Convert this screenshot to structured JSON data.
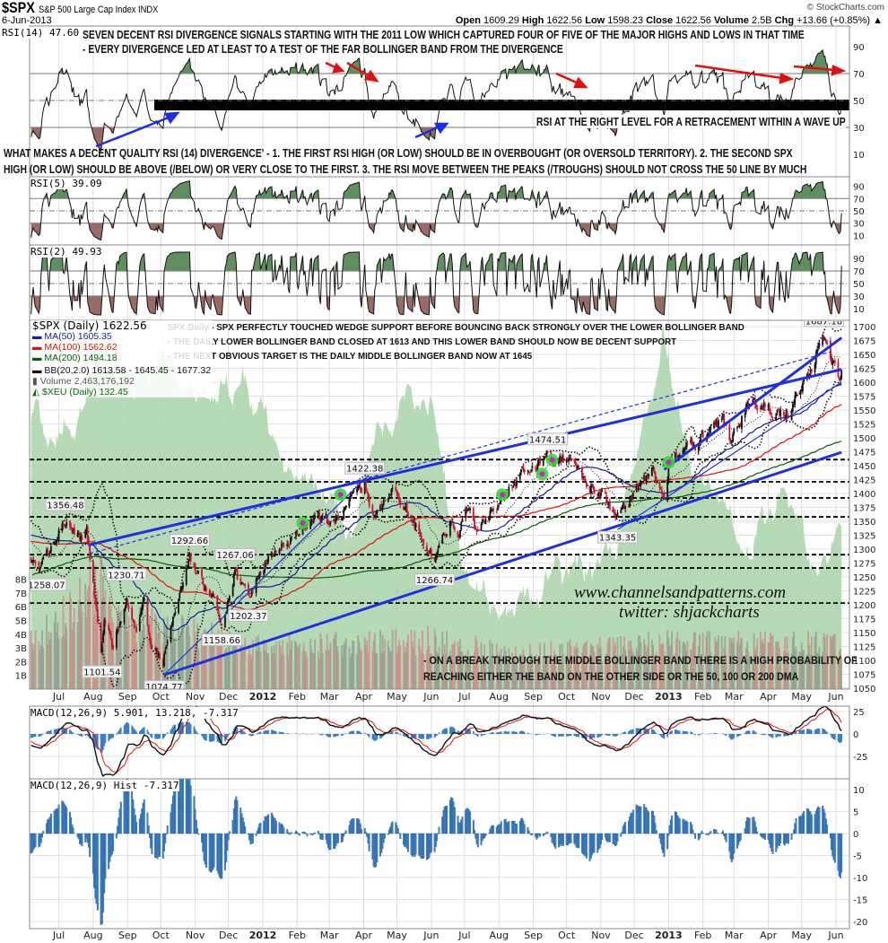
{
  "header": {
    "symbol": "$SPX",
    "name": "S&P 500 Large Cap Index  INDX",
    "date": "6-Jun-2013",
    "copyright": "© StockCharts.com",
    "open_label": "Open",
    "open": "1609.29",
    "high_label": "High",
    "high": "1622.56",
    "low_label": "Low",
    "low": "1598.23",
    "close_label": "Close",
    "close": "1622.56",
    "volume_label": "Volume",
    "volume": "2.5B",
    "chg_label": "Chg",
    "chg": "+13.66 (+0.85%) ▲"
  },
  "panels": {
    "rsi14_label": "RSI(14) 47.60",
    "rsi5_label": "RSI(5) 39.09",
    "rsi2_label": "RSI(2) 49.93",
    "macd_label": "MACD(12,26,9) 5.901, 13.218, -7.317",
    "hist_label": "MACD(12,26,9) Hist -7.317"
  },
  "legend": {
    "spx": "$SPX (Daily) 1622.56",
    "ma50": "MA(50) 1605.35",
    "ma100": "MA(100) 1562.62",
    "ma200": "MA(200) 1494.18",
    "bb": "BB(20,2.0) 1613.58 - 1645.45 - 1677.32",
    "volume": "Volume 2,463,176,192",
    "xeu": "$XEU (Daily) 132.45"
  },
  "annotations": {
    "rsi_line1": "SEVEN DECENT RSI DIVERGENCE SIGNALS STARTING WITH THE 2011 LOW WHICH CAPTURED FOUR OF FIVE OF THE MAJOR HIGHS AND LOWS IN THAT TIME",
    "rsi_line2": "- EVERY DIVERGENCE LED AT LEAST TO A TEST OF THE FAR BOLLINGER BAND FROM THE DIVERGENCE",
    "rsi_level": "RSI AT THE RIGHT LEVEL FOR A RETRACEMENT WITHIN A WAVE UP",
    "quality1": "WHAT MAKES A DECENT QUALITY RSI (14) DIVERGENCE' - 1. THE FIRST RSI HIGH (OR LOW) SHOULD BE IN OVERBOUGHT (OR OVERSOLD TERRITORY). 2. THE SECOND SPX",
    "quality2": "HIGH (OR LOW) SHOULD BE ABOVE (/BELOW) OR VERY CLOSE TO THE FIRST. 3. THE RSI MOVE BETWEEN THE PEAKS (/TROUGHS) SHOULD NOT CROSS THE 50 LINE BY MUCH",
    "spx1": "SPX Daily - SPX PERFECTLY TOUCHED WEDGE SUPPORT BEFORE BOUNCING BACK STRONGLY OVER THE LOWER BOLLINGER BAND",
    "spx2": "- THE DAILY LOWER BOLLINGER BAND CLOSED AT 1613 AND THIS LOWER BAND SHOULD NOW BE DECENT SUPPORT",
    "spx3": "- THE NEXT OBVIOUS TARGET IS THE DAILY MIDDLE BOLLINGER BAND NOW AT 1645",
    "bottom1": "- ON A BREAK THROUGH THE MIDDLE BOLLINGER BAND THERE IS A HIGH PROBABILITY OF",
    "bottom2": "REACHING EITHER THE BAND ON THE OTHER SIDE OR THE 50, 100 OR 200 DMA",
    "watermark1": "www.channelsandpatterns.com",
    "watermark2": "twitter: shjackcharts"
  },
  "chart_data": {
    "type": "candlestick",
    "title": "$SPX S&P 500 Large Cap Index (Daily)",
    "series_start": "2010-09-01",
    "series_end": "2013-06-06",
    "visible_start": "2011-06-06",
    "last_close": 1622.56,
    "price_ylim": [
      1040,
      1715
    ],
    "price_ticks": [
      1050,
      1075,
      1100,
      1125,
      1150,
      1175,
      1200,
      1225,
      1250,
      1275,
      1300,
      1325,
      1350,
      1375,
      1400,
      1425,
      1450,
      1475,
      1500,
      1525,
      1550,
      1575,
      1600,
      1625,
      1650,
      1675,
      1700
    ],
    "volume_ticks": [
      "1B",
      "2B",
      "3B",
      "4B",
      "5B",
      "6B",
      "7B",
      "8B"
    ],
    "rsi_ticks": [
      90,
      70,
      50,
      30,
      10
    ],
    "macd_ticks": [
      25,
      0,
      -25
    ],
    "hist_ticks": [
      10,
      5,
      0,
      -5,
      -10,
      -15,
      -20
    ],
    "months": [
      {
        "date": "2011-07-01",
        "label": "Jul"
      },
      {
        "date": "2011-08-01",
        "label": "Aug"
      },
      {
        "date": "2011-09-01",
        "label": "Sep"
      },
      {
        "date": "2011-10-01",
        "label": "Oct"
      },
      {
        "date": "2011-11-01",
        "label": "Nov"
      },
      {
        "date": "2011-12-01",
        "label": "Dec"
      },
      {
        "date": "2012-01-01",
        "label": "2012",
        "bold": true
      },
      {
        "date": "2012-02-01",
        "label": "Feb"
      },
      {
        "date": "2012-03-01",
        "label": "Mar"
      },
      {
        "date": "2012-04-01",
        "label": "Apr"
      },
      {
        "date": "2012-05-01",
        "label": "May"
      },
      {
        "date": "2012-06-01",
        "label": "Jun"
      },
      {
        "date": "2012-07-01",
        "label": "Jul"
      },
      {
        "date": "2012-08-01",
        "label": "Aug"
      },
      {
        "date": "2012-09-01",
        "label": "Sep"
      },
      {
        "date": "2012-10-01",
        "label": "Oct"
      },
      {
        "date": "2012-11-01",
        "label": "Nov"
      },
      {
        "date": "2012-12-01",
        "label": "Dec"
      },
      {
        "date": "2013-01-01",
        "label": "2013",
        "bold": true
      },
      {
        "date": "2013-02-01",
        "label": "Feb"
      },
      {
        "date": "2013-03-01",
        "label": "Mar"
      },
      {
        "date": "2013-04-01",
        "label": "Apr"
      },
      {
        "date": "2013-05-01",
        "label": "May"
      },
      {
        "date": "2013-06-01",
        "label": "Jun"
      }
    ],
    "price_pivots": [
      [
        "2010-09-01",
        1080
      ],
      [
        "2010-11-05",
        1225
      ],
      [
        "2010-11-16",
        1178
      ],
      [
        "2011-01-03",
        1272
      ],
      [
        "2011-02-18",
        1343
      ],
      [
        "2011-03-16",
        1256
      ],
      [
        "2011-05-02",
        1363
      ],
      [
        "2011-06-15",
        1265
      ],
      [
        "2011-07-07",
        1356
      ],
      [
        "2011-07-20",
        1320
      ],
      [
        "2011-07-26",
        1331
      ],
      [
        "2011-08-08",
        1120
      ],
      [
        "2011-08-11",
        1172
      ],
      [
        "2011-08-19",
        1123
      ],
      [
        "2011-08-31",
        1218
      ],
      [
        "2011-09-09",
        1154
      ],
      [
        "2011-09-16",
        1216
      ],
      [
        "2011-09-22",
        1129
      ],
      [
        "2011-10-03",
        1099
      ],
      [
        "2011-10-05",
        1123
      ],
      [
        "2011-10-27",
        1284
      ],
      [
        "2011-11-03",
        1261
      ],
      [
        "2011-11-09",
        1229
      ],
      [
        "2011-11-17",
        1216
      ],
      [
        "2011-11-25",
        1158
      ],
      [
        "2011-12-07",
        1261
      ],
      [
        "2011-12-19",
        1205
      ],
      [
        "2012-01-03",
        1277
      ],
      [
        "2012-02-17",
        1361
      ],
      [
        "2012-03-06",
        1343
      ],
      [
        "2012-04-02",
        1419
      ],
      [
        "2012-04-10",
        1358
      ],
      [
        "2012-05-01",
        1405
      ],
      [
        "2012-06-04",
        1278
      ],
      [
        "2012-06-19",
        1357
      ],
      [
        "2012-06-25",
        1313
      ],
      [
        "2012-07-03",
        1374
      ],
      [
        "2012-07-12",
        1334
      ],
      [
        "2012-08-16",
        1418
      ],
      [
        "2012-09-14",
        1465
      ],
      [
        "2012-10-05",
        1460
      ],
      [
        "2012-10-25",
        1412
      ],
      [
        "2012-11-16",
        1359
      ],
      [
        "2012-12-18",
        1446
      ],
      [
        "2012-12-28",
        1402
      ],
      [
        "2013-01-02",
        1462
      ],
      [
        "2013-02-19",
        1530
      ],
      [
        "2013-02-25",
        1488
      ],
      [
        "2013-03-14",
        1563
      ],
      [
        "2013-04-18",
        1541
      ],
      [
        "2013-05-21",
        1669
      ],
      [
        "2013-06-05",
        1608
      ],
      [
        "2013-06-06",
        1622
      ]
    ],
    "volume_pivots_billions": [
      [
        "2010-09-01",
        3.5
      ],
      [
        "2011-06-06",
        3.4
      ],
      [
        "2011-08-08",
        7.8
      ],
      [
        "2011-08-22",
        5
      ],
      [
        "2011-10-01",
        4.6
      ],
      [
        "2011-12-31",
        3
      ],
      [
        "2012-06-01",
        3.6
      ],
      [
        "2012-08-15",
        2.5
      ],
      [
        "2012-12-31",
        3.3
      ],
      [
        "2013-06-06",
        3.3
      ]
    ],
    "xeu_pivots": [
      [
        "2011-06-06",
        105
      ],
      [
        "2011-07-15",
        109
      ],
      [
        "2011-08-08",
        142
      ],
      [
        "2011-09-10",
        127
      ],
      [
        "2011-10-04",
        134
      ],
      [
        "2011-11-10",
        120
      ],
      [
        "2011-12-15",
        123
      ],
      [
        "2012-01-20",
        90
      ],
      [
        "2012-02-20",
        83
      ],
      [
        "2012-03-15",
        68
      ],
      [
        "2012-04-10",
        98
      ],
      [
        "2012-05-10",
        120
      ],
      [
        "2012-06-01",
        116
      ],
      [
        "2012-07-01",
        46
      ],
      [
        "2012-08-10",
        28
      ],
      [
        "2012-09-10",
        43
      ],
      [
        "2012-10-10",
        50
      ],
      [
        "2012-11-15",
        54
      ],
      [
        "2012-12-28",
        145
      ],
      [
        "2013-01-20",
        90
      ],
      [
        "2013-02-15",
        76
      ],
      [
        "2013-03-15",
        57
      ],
      [
        "2013-04-18",
        87
      ],
      [
        "2013-05-10",
        46
      ],
      [
        "2013-06-06",
        61
      ]
    ],
    "price_labels": [
      {
        "date": "2011-07-07",
        "value": 1356.48,
        "text": "1356.48",
        "pos": "above"
      },
      {
        "date": "2011-06-20",
        "value": 1258.07,
        "text": "1258.07",
        "pos": "below"
      },
      {
        "date": "2011-08-31",
        "value": 1230.71,
        "text": "1230.71",
        "pos": "above"
      },
      {
        "date": "2011-10-27",
        "value": 1292.66,
        "text": "1292.66",
        "pos": "above"
      },
      {
        "date": "2011-12-07",
        "value": 1267.06,
        "text": "1267.06",
        "pos": "above"
      },
      {
        "date": "2011-08-09",
        "value": 1101.54,
        "text": "1101.54",
        "pos": "below"
      },
      {
        "date": "2011-10-04",
        "value": 1074.77,
        "text": "1074.77",
        "pos": "below"
      },
      {
        "date": "2011-11-25",
        "value": 1158.66,
        "text": "1158.66",
        "pos": "below"
      },
      {
        "date": "2011-12-19",
        "value": 1202.37,
        "text": "1202.37",
        "pos": "below"
      },
      {
        "date": "2012-04-02",
        "value": 1422.38,
        "text": "1422.38",
        "pos": "above"
      },
      {
        "date": "2012-06-04",
        "value": 1266.74,
        "text": "1266.74",
        "pos": "below"
      },
      {
        "date": "2012-09-14",
        "value": 1474.51,
        "text": "1474.51",
        "pos": "above"
      },
      {
        "date": "2012-11-16",
        "value": 1343.35,
        "text": "1343.35",
        "pos": "below"
      },
      {
        "date": "2013-05-21",
        "value": 1687.18,
        "text": "1687.18",
        "pos": "above"
      }
    ],
    "horizontal_levels": [
      1203,
      1266,
      1290,
      1358,
      1392,
      1421,
      1461
    ],
    "trendlines": [
      {
        "from": [
          "2011-07-29",
          1308
        ],
        "to": [
          "2013-06-06",
          1623
        ],
        "style": "thick"
      },
      {
        "from": [
          "2011-10-04",
          1074
        ],
        "to": [
          "2013-06-06",
          1474
        ],
        "style": "thick"
      },
      {
        "from": [
          "2012-12-28",
          1443
        ],
        "to": [
          "2013-06-06",
          1680
        ],
        "style": "thick"
      },
      {
        "from": [
          "2012-11-16",
          1335
        ],
        "to": [
          "2013-06-06",
          1600
        ],
        "style": "thin"
      },
      {
        "from": [
          "2011-10-04",
          1074
        ],
        "to": [
          "2012-04-05",
          1432
        ],
        "style": "thin"
      },
      {
        "from": [
          "2011-07-29",
          1292
        ],
        "to": [
          "2013-05-28",
          1655
        ],
        "style": "dashed"
      }
    ],
    "signal_markers": [
      {
        "date": "2012-02-06",
        "value": 1347
      },
      {
        "date": "2012-03-11",
        "value": 1398
      },
      {
        "date": "2012-08-04",
        "value": 1398
      },
      {
        "date": "2012-09-09",
        "value": 1435
      },
      {
        "date": "2012-09-18",
        "value": 1460
      },
      {
        "date": "2013-01-01",
        "value": 1456
      }
    ],
    "colors": {
      "ma50": "#1a1a9a",
      "ma100": "#e31010",
      "ma200": "#0a5a0a",
      "bb": "#111111",
      "xeu": "#a9d3a9",
      "trend": "#1f2fe0",
      "up": "#111111",
      "down": "#cc1133",
      "hist": "#3b7fc4"
    }
  }
}
